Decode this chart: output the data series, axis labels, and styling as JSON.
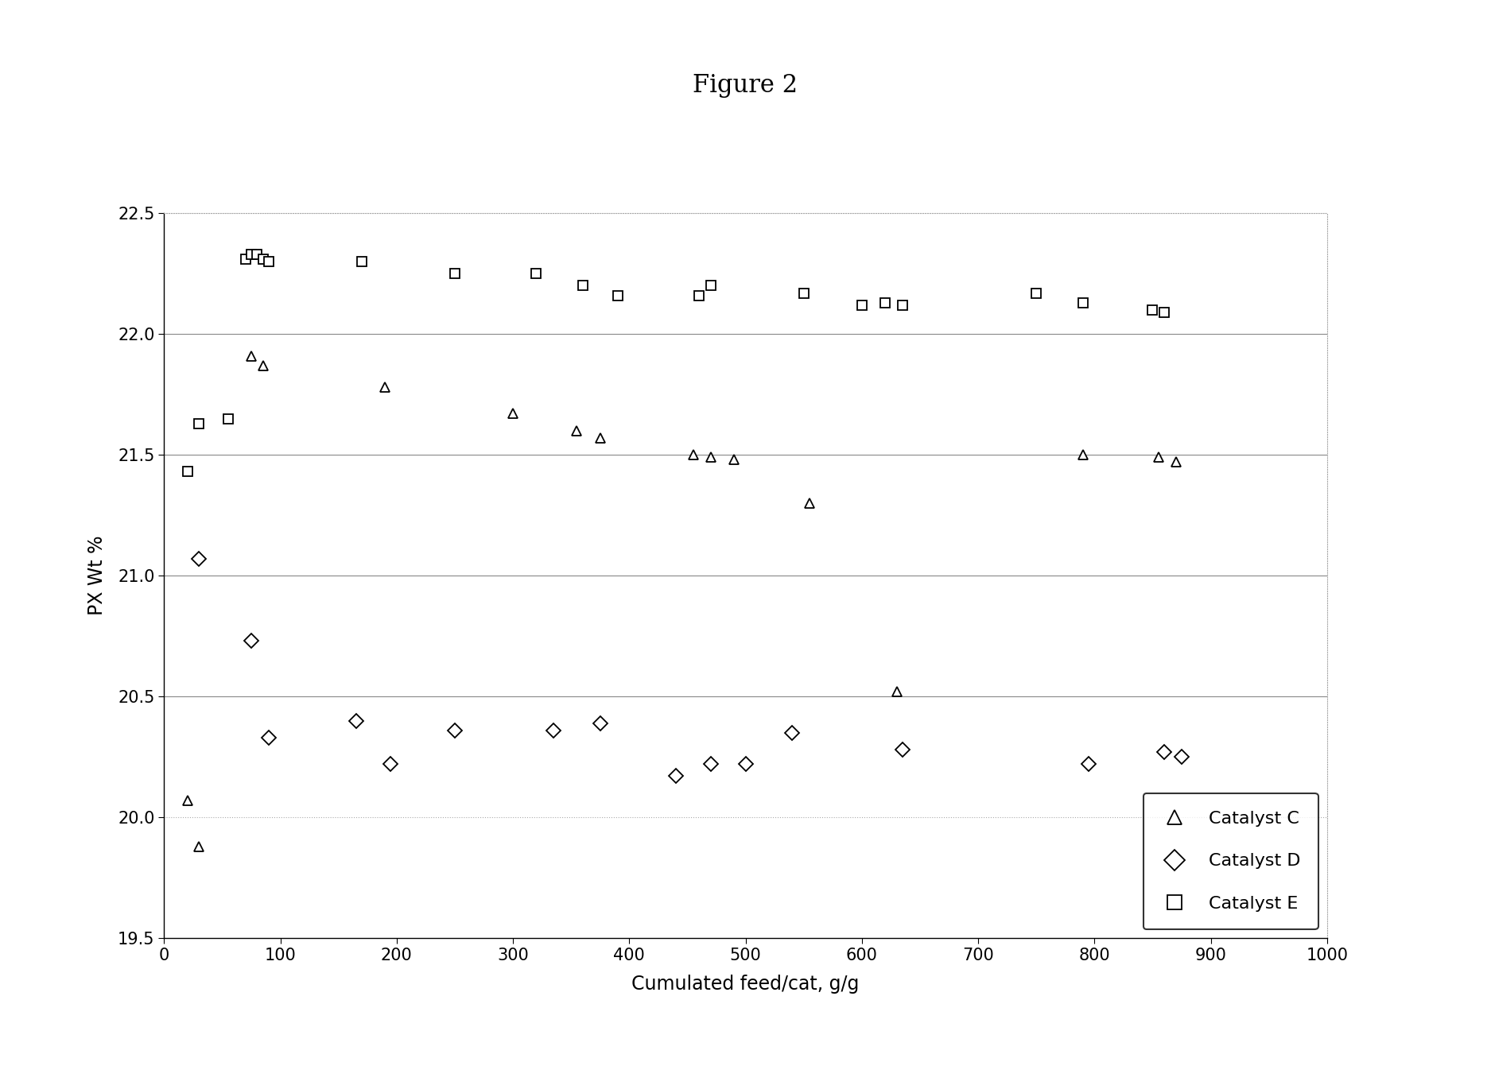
{
  "title": "Figure 2",
  "xlabel": "Cumulated feed/cat, g/g",
  "ylabel": "PX Wt %",
  "xlim": [
    0,
    1000
  ],
  "ylim": [
    19.5,
    22.5
  ],
  "xticks": [
    0,
    100,
    200,
    300,
    400,
    500,
    600,
    700,
    800,
    900,
    1000
  ],
  "yticks": [
    19.5,
    20.0,
    20.5,
    21.0,
    21.5,
    22.0,
    22.5
  ],
  "catalyst_C": {
    "x": [
      20,
      30,
      75,
      85,
      190,
      300,
      355,
      375,
      455,
      470,
      490,
      555,
      630,
      790,
      855,
      870
    ],
    "y": [
      20.07,
      19.88,
      21.91,
      21.87,
      21.78,
      21.67,
      21.6,
      21.57,
      21.5,
      21.49,
      21.48,
      21.3,
      20.52,
      21.5,
      21.49,
      21.47
    ],
    "marker": "^",
    "label": "Catalyst C"
  },
  "catalyst_D": {
    "x": [
      30,
      75,
      90,
      165,
      195,
      250,
      335,
      375,
      440,
      470,
      500,
      540,
      635,
      795,
      860,
      875
    ],
    "y": [
      21.07,
      20.73,
      20.33,
      20.4,
      20.22,
      20.36,
      20.36,
      20.39,
      20.17,
      20.22,
      20.22,
      20.35,
      20.28,
      20.22,
      20.27,
      20.25
    ],
    "marker": "D",
    "label": "Catalyst D"
  },
  "catalyst_E": {
    "x": [
      20,
      30,
      55,
      70,
      75,
      80,
      85,
      90,
      170,
      250,
      320,
      360,
      390,
      460,
      470,
      550,
      600,
      620,
      635,
      750,
      790,
      850,
      860
    ],
    "y": [
      21.43,
      21.63,
      21.65,
      22.31,
      22.33,
      22.33,
      22.31,
      22.3,
      22.3,
      22.25,
      22.25,
      22.2,
      22.16,
      22.16,
      22.2,
      22.17,
      22.12,
      22.13,
      22.12,
      22.17,
      22.13,
      22.1,
      22.09
    ],
    "marker": "s",
    "label": "Catalyst E"
  },
  "marker_size": 9,
  "marker_facecolor": "white",
  "marker_edgecolor": "black",
  "marker_linewidth": 1.3,
  "legend_loc": "lower right",
  "background_color": "#ffffff",
  "solid_hlines": [
    20.5,
    21.0,
    21.5,
    22.0
  ],
  "dotted_hline": 20.0,
  "top_hline": 22.5,
  "grid_line_color": "#888888",
  "dotted_line_color": "#aaaaaa",
  "top_border_color": "#aaaaaa"
}
